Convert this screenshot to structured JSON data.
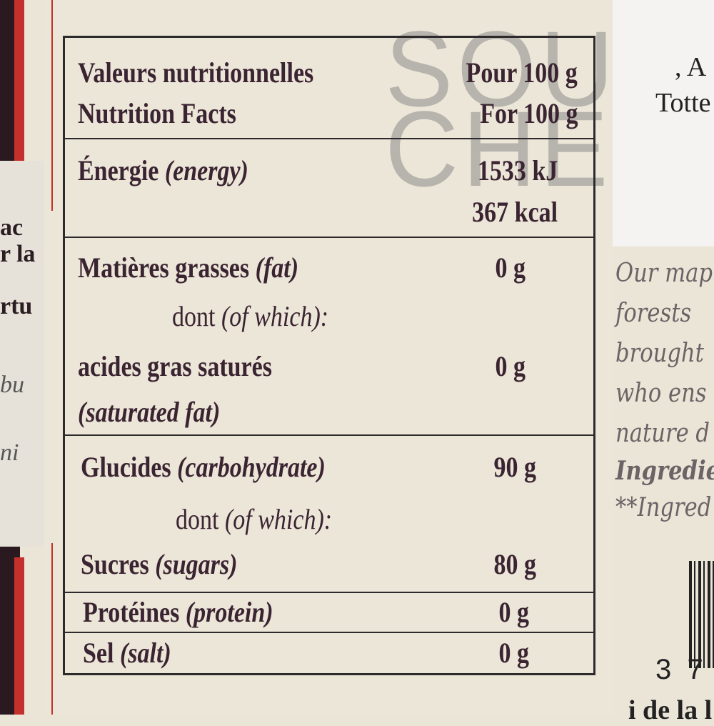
{
  "left_fragments": [
    "ac",
    "r la",
    "rtu",
    "bu",
    "ni"
  ],
  "label": {
    "header": {
      "fr": "Valeurs nutritionnelles",
      "en": "Nutrition Facts",
      "per_fr": "Pour 100 g",
      "per_en": "For 100 g"
    },
    "rows": [
      {
        "fr": "Énergie",
        "en": "(energy)",
        "value": "1533 kJ",
        "value2": "367 kcal"
      },
      {
        "fr": "Matières grasses",
        "en": "(fat)",
        "value": "0 g"
      },
      {
        "fr": "dont",
        "en": "(of which):"
      },
      {
        "fr": "acides gras saturés",
        "en": "(saturated fat)",
        "value": "0 g"
      },
      {
        "fr": "Glucides",
        "en": "(carbohydrate)",
        "value": "90 g"
      },
      {
        "fr": "dont",
        "en": "(of which):"
      },
      {
        "fr": "Sucres",
        "en": "(sugars)",
        "value": "80 g"
      },
      {
        "fr": "Protéines",
        "en": "(protein)",
        "value": "0 g"
      },
      {
        "fr": "Sel",
        "en": "(salt)",
        "value": "0 g"
      }
    ]
  },
  "watermark": {
    "line1": "SOUS",
    "line2": "CHEF"
  },
  "right": {
    "white_lines": [
      ", A",
      "Totte"
    ],
    "italic_lines": [
      "Our map",
      "forests",
      "brought",
      "who ens",
      "nature d",
      "Ingredie",
      "**Ingred"
    ],
    "barcode_digits": "3  7",
    "bottom": "i de la l"
  },
  "colors": {
    "text": "#3b2431",
    "paper": "#ece6d9",
    "border_red": "#c4302b"
  }
}
